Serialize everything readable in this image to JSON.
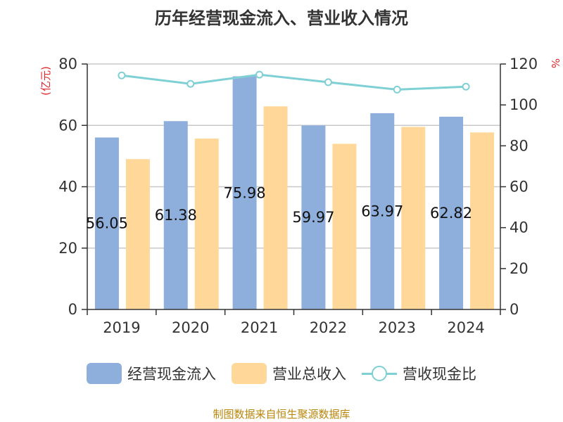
{
  "title": "历年经营现金流入、营业收入情况",
  "source": "制图数据来自恒生聚源数据库",
  "colors": {
    "cash_inflow": "#8eaedb",
    "revenue": "#ffd899",
    "ratio": "#7fd0d5",
    "axis_label": "#e0262b",
    "data_label": "#111111"
  },
  "chart_data": {
    "type": "bar",
    "categories": [
      "2019",
      "2020",
      "2021",
      "2022",
      "2023",
      "2024"
    ],
    "left_axis": {
      "label": "(亿元)",
      "ylim": [
        0,
        80
      ],
      "ticks": [
        "0",
        "20",
        "40",
        "60",
        "80"
      ]
    },
    "right_axis": {
      "label": "%",
      "ylim": [
        0,
        120
      ],
      "ticks": [
        "0",
        "20",
        "40",
        "60",
        "80",
        "100",
        "120"
      ]
    },
    "series": [
      {
        "name": "经营现金流入",
        "type": "bar",
        "axis": "left",
        "values": [
          56.05,
          61.38,
          75.98,
          59.97,
          63.97,
          62.82
        ],
        "labels": [
          "56.05",
          "61.38",
          "75.98",
          "59.97",
          "63.97",
          "62.82"
        ]
      },
      {
        "name": "营业总收入",
        "type": "bar",
        "axis": "left",
        "values": [
          49,
          55.7,
          66.2,
          54,
          59.5,
          57.7
        ]
      },
      {
        "name": "营收现金比",
        "type": "line",
        "axis": "right",
        "values": [
          114.4,
          110.3,
          114.8,
          111.1,
          107.5,
          108.9
        ]
      }
    ],
    "grid": true,
    "legend_position": "bottom"
  }
}
